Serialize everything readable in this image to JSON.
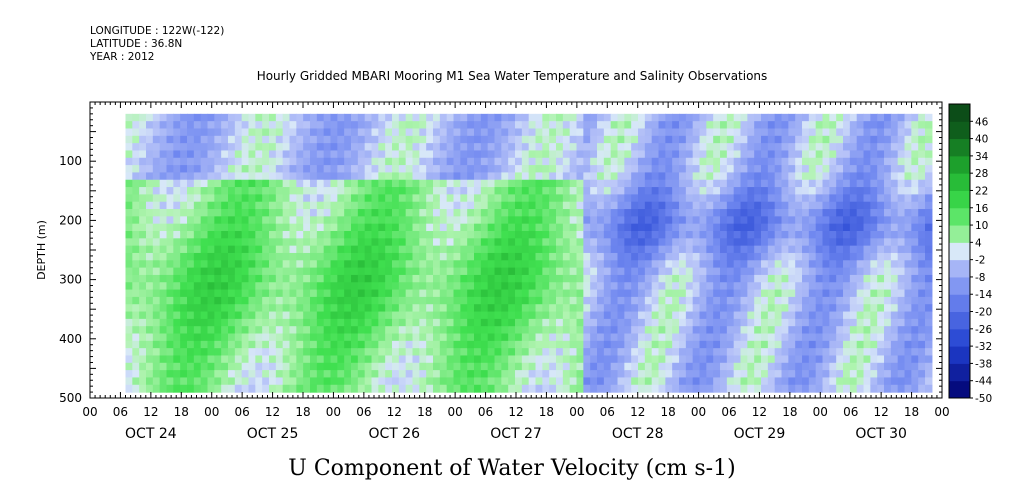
{
  "header": {
    "longitude": "LONGITUDE : 122W(-122)",
    "latitude": "LATITUDE : 36.8N",
    "year": "YEAR : 2012"
  },
  "chart_data": {
    "type": "heatmap",
    "title": "Hourly Gridded MBARI Mooring M1 Sea Water Temperature and Salinity Observations",
    "xlabel": "U Component of Water Velocity (cm s-1)",
    "ylabel": "DEPTH (m)",
    "x_range_hours": [
      0,
      168
    ],
    "hour_ticks": [
      "00",
      "06",
      "12",
      "18",
      "00",
      "06",
      "12",
      "18",
      "00",
      "06",
      "12",
      "18",
      "00",
      "06",
      "12",
      "18",
      "00",
      "06",
      "12",
      "18",
      "00",
      "06",
      "12",
      "18",
      "00",
      "06",
      "12",
      "18",
      "00"
    ],
    "day_labels": [
      "OCT 24",
      "OCT 25",
      "OCT 26",
      "OCT 27",
      "OCT 28",
      "OCT 29",
      "OCT 30"
    ],
    "data_start_hour": 7,
    "y_range": [
      500,
      0
    ],
    "y_reversed": true,
    "y_ticks": [
      100,
      200,
      300,
      400,
      500
    ],
    "colorbar": {
      "levels": [
        -50,
        -44,
        -38,
        -32,
        -26,
        -20,
        -14,
        -8,
        -2,
        4,
        10,
        16,
        22,
        28,
        34,
        40,
        46
      ],
      "labels": [
        "-50",
        "-44",
        "-38",
        "-32",
        "-26",
        "-20",
        "-14",
        "-8",
        "-2",
        "4",
        "10",
        "16",
        "22",
        "28",
        "34",
        "40",
        "46"
      ],
      "low_color": "#00006e",
      "zero_color": "#d8e8f8",
      "high_color": "#0c4d18"
    },
    "pattern_summary": "Mostly weak green (eastward, 4-16) flow over Oct 24-27 especially 200-400 m; blue (westward, -8 to -20) band around 150-250 m during Oct 28-30",
    "grid": false
  }
}
